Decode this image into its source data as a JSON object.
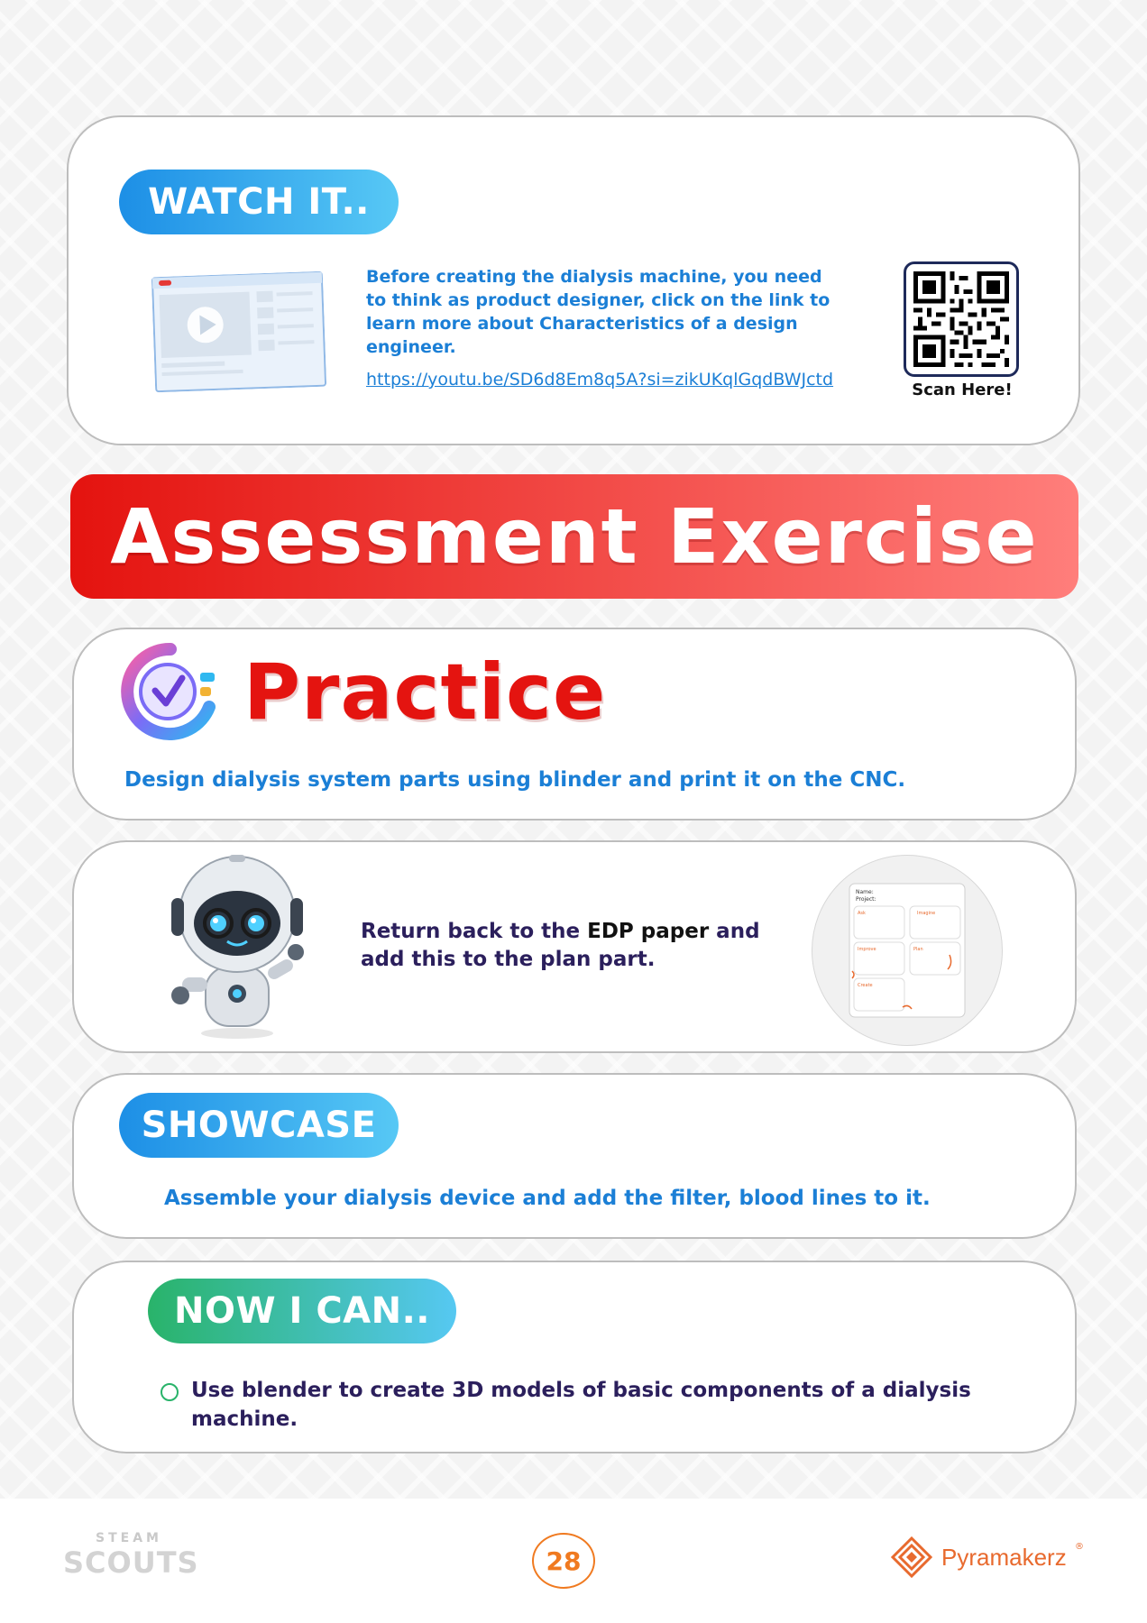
{
  "watch": {
    "label": "WATCH IT..",
    "text": "Before creating the dialysis machine, you need to think as product designer, click on the link to learn more about Characteristics of a design engineer.",
    "link": "https://youtu.be/SD6d8Em8q5A?si=zikUKqlGqdBWJctd",
    "qr_caption": "Scan Here!"
  },
  "banner": {
    "title": "Assessment Exercise"
  },
  "practice": {
    "title": "Practice",
    "text": "Design dialysis system parts using blinder and print it on the CNC."
  },
  "edp": {
    "text_pre": "Return back to the ",
    "text_strong": "EDP paper",
    "text_post": " and add this to the plan part.",
    "paper_labels": [
      "Name:",
      "Project:",
      "Ask",
      "Imagine",
      "Improve",
      "Plan",
      "Create"
    ]
  },
  "showcase": {
    "label": "SHOWCASE",
    "text": "Assemble your dialysis device and add the filter, blood lines to it."
  },
  "nowican": {
    "label": "NOW I CAN..",
    "items": [
      "Use blender to create 3D models of basic components of a dialysis machine."
    ]
  },
  "footer": {
    "steam_top": "STEAM",
    "steam_bottom": "SCOUTS",
    "page_number": "28",
    "brand": "Pyramakerz",
    "brand_mark": "®"
  },
  "colors": {
    "blue": "#1b7fd6",
    "red": "#e41410",
    "navy": "#2b1f5c",
    "orange": "#f07a20",
    "green": "#29b36a"
  }
}
